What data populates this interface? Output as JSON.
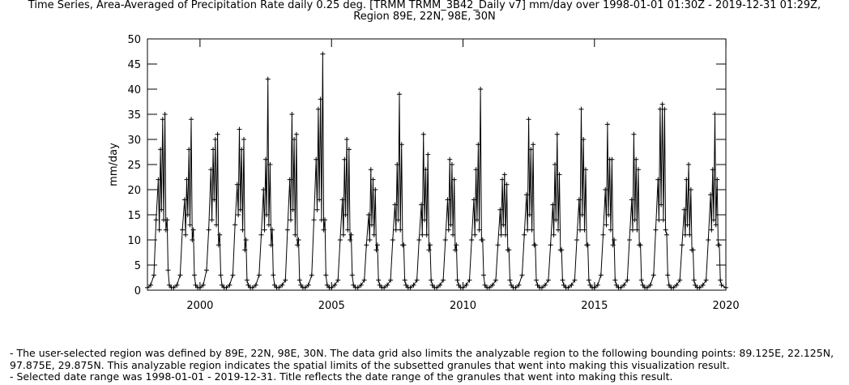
{
  "chart_data": {
    "type": "line",
    "title": "Time Series, Area-Averaged of Precipitation Rate daily 0.25 deg. [TRMM TRMM_3B42_Daily v7] mm/day over 1998-01-01 01:30Z - 2019-12-31 01:29Z,",
    "subtitle": "Region 89E, 22N, 98E, 30N",
    "xlabel": "",
    "ylabel": "mm/day",
    "x_range": [
      "1998-01-01",
      "2019-12-31"
    ],
    "ylim": [
      0,
      50
    ],
    "y_ticks": [
      0,
      5,
      10,
      15,
      20,
      25,
      30,
      35,
      40,
      45,
      50
    ],
    "x_ticks": [
      "2000",
      "2005",
      "2010",
      "2015",
      "2020"
    ],
    "grid": false,
    "legend": "none",
    "marker": "plus",
    "line_color": "#000000",
    "series": [
      {
        "x": [
          "1998-01-01",
          "1998-02-15",
          "1998-04-01",
          "1998-05-01",
          "1998-06-01",
          "1998-06-15",
          "1998-07-01",
          "1998-07-15",
          "1998-08-01",
          "1998-08-15",
          "1998-09-01",
          "1998-09-15",
          "1998-10-01",
          "1998-10-15",
          "1998-11-01",
          "1998-12-01",
          "1999-01-01",
          "1999-02-15",
          "1999-04-01",
          "1999-05-01",
          "1999-06-01",
          "1999-06-15",
          "1999-07-01",
          "1999-07-15",
          "1999-08-01",
          "1999-08-15",
          "1999-09-01",
          "1999-09-15",
          "1999-10-01",
          "1999-10-15",
          "1999-11-01",
          "1999-12-01",
          "2000-01-01",
          "2000-02-15",
          "2000-04-01",
          "2000-05-01",
          "2000-06-01",
          "2000-06-15",
          "2000-07-01",
          "2000-07-15",
          "2000-08-01",
          "2000-08-15",
          "2000-09-01",
          "2000-09-15",
          "2000-10-01",
          "2000-10-15",
          "2000-11-01",
          "2000-12-01",
          "2001-01-01",
          "2001-02-15",
          "2001-04-01",
          "2001-05-01",
          "2001-06-01",
          "2001-06-15",
          "2001-07-01",
          "2001-07-15",
          "2001-08-01",
          "2001-08-15",
          "2001-09-01",
          "2001-09-15",
          "2001-10-01",
          "2001-10-15",
          "2001-11-01",
          "2001-12-01",
          "2002-01-01",
          "2002-02-15",
          "2002-04-01",
          "2002-05-01",
          "2002-06-01",
          "2002-06-15",
          "2002-07-01",
          "2002-07-15",
          "2002-08-01",
          "2002-08-15",
          "2002-09-01",
          "2002-09-15",
          "2002-10-01",
          "2002-10-15",
          "2002-11-01",
          "2002-12-01",
          "2003-01-01",
          "2003-02-15",
          "2003-04-01",
          "2003-05-01",
          "2003-06-01",
          "2003-06-15",
          "2003-07-01",
          "2003-07-15",
          "2003-08-01",
          "2003-08-15",
          "2003-09-01",
          "2003-09-15",
          "2003-10-01",
          "2003-10-15",
          "2003-11-01",
          "2003-12-01",
          "2004-01-01",
          "2004-02-15",
          "2004-04-01",
          "2004-05-01",
          "2004-06-01",
          "2004-06-15",
          "2004-07-01",
          "2004-07-15",
          "2004-08-01",
          "2004-08-15",
          "2004-09-01",
          "2004-09-15",
          "2004-10-01",
          "2004-10-15",
          "2004-11-01",
          "2004-12-01",
          "2005-01-01",
          "2005-02-15",
          "2005-04-01",
          "2005-05-01",
          "2005-06-01",
          "2005-06-15",
          "2005-07-01",
          "2005-07-15",
          "2005-08-01",
          "2005-08-15",
          "2005-09-01",
          "2005-09-15",
          "2005-10-01",
          "2005-10-15",
          "2005-11-01",
          "2005-12-01",
          "2006-01-01",
          "2006-02-15",
          "2006-04-01",
          "2006-05-01",
          "2006-06-01",
          "2006-06-15",
          "2006-07-01",
          "2006-07-15",
          "2006-08-01",
          "2006-08-15",
          "2006-09-01",
          "2006-09-15",
          "2006-10-01",
          "2006-10-15",
          "2006-11-01",
          "2006-12-01",
          "2007-01-01",
          "2007-02-15",
          "2007-04-01",
          "2007-05-01",
          "2007-06-01",
          "2007-06-15",
          "2007-07-01",
          "2007-07-15",
          "2007-08-01",
          "2007-08-15",
          "2007-09-01",
          "2007-09-15",
          "2007-10-01",
          "2007-10-15",
          "2007-11-01",
          "2007-12-01",
          "2008-01-01",
          "2008-02-15",
          "2008-04-01",
          "2008-05-01",
          "2008-06-01",
          "2008-06-15",
          "2008-07-01",
          "2008-07-15",
          "2008-08-01",
          "2008-08-15",
          "2008-09-01",
          "2008-09-15",
          "2008-10-01",
          "2008-10-15",
          "2008-11-01",
          "2008-12-01",
          "2009-01-01",
          "2009-02-15",
          "2009-04-01",
          "2009-05-01",
          "2009-06-01",
          "2009-06-15",
          "2009-07-01",
          "2009-07-15",
          "2009-08-01",
          "2009-08-15",
          "2009-09-01",
          "2009-09-15",
          "2009-10-01",
          "2009-10-15",
          "2009-11-01",
          "2009-12-01",
          "2010-01-01",
          "2010-02-15",
          "2010-04-01",
          "2010-05-01",
          "2010-06-01",
          "2010-06-15",
          "2010-07-01",
          "2010-07-15",
          "2010-08-01",
          "2010-08-15",
          "2010-09-01",
          "2010-09-15",
          "2010-10-01",
          "2010-10-15",
          "2010-11-01",
          "2010-12-01",
          "2011-01-01",
          "2011-02-15",
          "2011-04-01",
          "2011-05-01",
          "2011-06-01",
          "2011-06-15",
          "2011-07-01",
          "2011-07-15",
          "2011-08-01",
          "2011-08-15",
          "2011-09-01",
          "2011-09-15",
          "2011-10-01",
          "2011-10-15",
          "2011-11-01",
          "2011-12-01",
          "2012-01-01",
          "2012-02-15",
          "2012-04-01",
          "2012-05-01",
          "2012-06-01",
          "2012-06-15",
          "2012-07-01",
          "2012-07-15",
          "2012-08-01",
          "2012-08-15",
          "2012-09-01",
          "2012-09-15",
          "2012-10-01",
          "2012-10-15",
          "2012-11-01",
          "2012-12-01",
          "2013-01-01",
          "2013-02-15",
          "2013-04-01",
          "2013-05-01",
          "2013-06-01",
          "2013-06-15",
          "2013-07-01",
          "2013-07-15",
          "2013-08-01",
          "2013-08-15",
          "2013-09-01",
          "2013-09-15",
          "2013-10-01",
          "2013-10-15",
          "2013-11-01",
          "2013-12-01",
          "2014-01-01",
          "2014-02-15",
          "2014-04-01",
          "2014-05-01",
          "2014-06-01",
          "2014-06-15",
          "2014-07-01",
          "2014-07-15",
          "2014-08-01",
          "2014-08-15",
          "2014-09-01",
          "2014-09-15",
          "2014-10-01",
          "2014-10-15",
          "2014-11-01",
          "2014-12-01",
          "2015-01-01",
          "2015-02-15",
          "2015-04-01",
          "2015-05-01",
          "2015-06-01",
          "2015-06-15",
          "2015-07-01",
          "2015-07-15",
          "2015-08-01",
          "2015-08-15",
          "2015-09-01",
          "2015-09-15",
          "2015-10-01",
          "2015-10-15",
          "2015-11-01",
          "2015-12-01",
          "2016-01-01",
          "2016-02-15",
          "2016-04-01",
          "2016-05-01",
          "2016-06-01",
          "2016-06-15",
          "2016-07-01",
          "2016-07-15",
          "2016-08-01",
          "2016-08-15",
          "2016-09-01",
          "2016-09-15",
          "2016-10-01",
          "2016-10-15",
          "2016-11-01",
          "2016-12-01",
          "2017-01-01",
          "2017-02-15",
          "2017-04-01",
          "2017-05-01",
          "2017-06-01",
          "2017-06-15",
          "2017-07-01",
          "2017-07-15",
          "2017-08-01",
          "2017-08-15",
          "2017-09-01",
          "2017-09-15",
          "2017-10-01",
          "2017-10-15",
          "2017-11-01",
          "2017-12-01",
          "2018-01-01",
          "2018-02-15",
          "2018-04-01",
          "2018-05-01",
          "2018-06-01",
          "2018-06-15",
          "2018-07-01",
          "2018-07-15",
          "2018-08-01",
          "2018-08-15",
          "2018-09-01",
          "2018-09-15",
          "2018-10-01",
          "2018-10-15",
          "2018-11-01",
          "2018-12-01",
          "2019-01-01",
          "2019-02-15",
          "2019-04-01",
          "2019-05-01",
          "2019-06-01",
          "2019-06-15",
          "2019-07-01",
          "2019-07-15",
          "2019-08-01",
          "2019-08-15",
          "2019-09-01",
          "2019-09-15",
          "2019-10-01",
          "2019-10-15",
          "2019-11-01",
          "2019-12-31"
        ],
        "y": [
          0.5,
          1,
          3,
          14,
          22,
          12,
          28,
          16,
          34,
          14,
          35,
          12,
          14,
          4,
          1,
          0.5,
          0.5,
          1,
          3,
          12,
          18,
          11,
          22,
          15,
          28,
          13,
          34,
          10,
          12,
          3,
          1,
          0.5,
          0.5,
          1,
          4,
          12,
          24,
          14,
          28,
          18,
          30,
          13,
          31,
          9,
          11,
          3,
          1,
          0.5,
          0.5,
          1,
          3,
          13,
          21,
          15,
          32,
          16,
          28,
          12,
          30,
          8,
          10,
          2,
          1,
          0.5,
          0.5,
          1,
          3,
          11,
          20,
          12,
          26,
          15,
          42,
          13,
          25,
          9,
          12,
          3,
          1,
          0.5,
          0.5,
          1,
          2,
          12,
          22,
          14,
          35,
          16,
          30,
          11,
          31,
          9,
          10,
          2,
          1,
          0.5,
          0.5,
          1,
          3,
          14,
          26,
          16,
          36,
          18,
          38,
          14,
          47,
          12,
          14,
          3,
          1,
          0.5,
          0.5,
          1,
          2,
          10,
          18,
          11,
          26,
          15,
          30,
          12,
          28,
          10,
          11,
          3,
          1,
          0.5,
          0.5,
          1,
          2,
          9,
          15,
          10,
          24,
          13,
          22,
          11,
          20,
          8,
          9,
          2,
          1,
          0.5,
          0.5,
          1,
          2,
          10,
          17,
          12,
          25,
          14,
          39,
          12,
          29,
          9,
          9,
          2,
          1,
          0.5,
          0.5,
          1,
          2,
          10,
          17,
          11,
          31,
          14,
          24,
          11,
          27,
          8,
          9,
          2,
          1,
          0.5,
          0.5,
          1,
          2,
          10,
          18,
          12,
          26,
          13,
          25,
          11,
          22,
          8,
          9,
          2,
          1,
          0.5,
          0.5,
          1,
          2,
          10,
          18,
          11,
          24,
          14,
          29,
          12,
          40,
          10,
          10,
          3,
          1,
          0.5,
          0.5,
          1,
          2,
          9,
          16,
          11,
          22,
          13,
          23,
          11,
          21,
          8,
          8,
          2,
          1,
          0.5,
          0.5,
          1,
          3,
          11,
          19,
          12,
          34,
          15,
          28,
          12,
          29,
          9,
          9,
          2,
          1,
          0.5,
          0.5,
          1,
          2,
          9,
          17,
          11,
          25,
          14,
          31,
          12,
          23,
          8,
          8,
          2,
          1,
          0.5,
          0.5,
          1,
          2,
          10,
          18,
          12,
          36,
          15,
          30,
          12,
          24,
          9,
          9,
          2,
          1,
          0.5,
          0.5,
          1,
          3,
          11,
          20,
          13,
          33,
          15,
          26,
          12,
          26,
          9,
          10,
          2,
          1,
          0.5,
          0.5,
          1,
          2,
          10,
          18,
          12,
          31,
          14,
          26,
          12,
          24,
          9,
          9,
          2,
          1,
          0.5,
          0.5,
          1,
          3,
          12,
          22,
          14,
          36,
          17,
          37,
          14,
          36,
          12,
          11,
          3,
          1,
          0.5,
          0.5,
          1,
          2,
          9,
          16,
          11,
          22,
          13,
          25,
          11,
          20,
          8,
          8,
          2,
          1,
          0.5,
          0.5,
          1,
          2,
          10,
          19,
          12,
          24,
          14,
          35,
          13,
          22,
          9,
          9,
          2,
          1,
          0.5
        ]
      }
    ]
  },
  "notes": [
    "- The user-selected region was defined by 89E, 22N, 98E, 30N. The data grid also limits the analyzable region to the following bounding points: 89.125E, 22.125N, 97.875E, 29.875N. This analyzable region indicates the spatial limits of the subsetted granules that went into making this visualization result.",
    "- Selected date range was 1998-01-01 - 2019-12-31. Title reflects the date range of the granules that went into making this result."
  ]
}
